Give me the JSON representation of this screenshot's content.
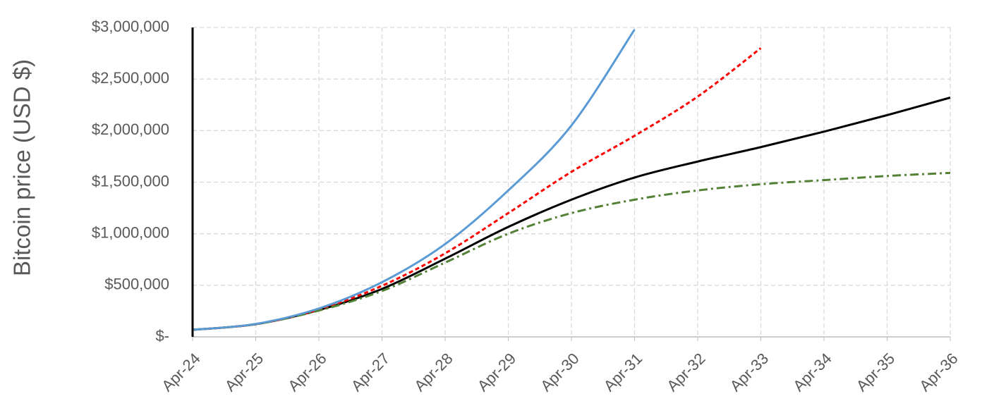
{
  "chart_data": {
    "type": "line",
    "y_label": "Bitcoin price (USD $)",
    "categories": [
      "Apr-24",
      "Apr-25",
      "Apr-26",
      "Apr-27",
      "Apr-28",
      "Apr-29",
      "Apr-30",
      "Apr-31",
      "Apr-32",
      "Apr-33",
      "Apr-34",
      "Apr-35",
      "Apr-36"
    ],
    "series": [
      {
        "color": "#000000",
        "dash": "solid",
        "values": [
          68000,
          123000,
          260000,
          465000,
          758000,
          1066000,
          1330000,
          1545000,
          1700000,
          1840000,
          1990000,
          2150000,
          2320000
        ]
      },
      {
        "color": "#ff0000",
        "dash": "dashed",
        "values": [
          68000,
          124000,
          265000,
          495000,
          810000,
          1200000,
          1600000,
          1950000,
          2330000,
          2800000,
          null,
          null,
          null
        ]
      },
      {
        "color": "#538135",
        "dash": "dashdot",
        "values": [
          68000,
          123000,
          255000,
          445000,
          720000,
          1000000,
          1200000,
          1330000,
          1420000,
          1480000,
          1520000,
          1560000,
          1590000
        ]
      },
      {
        "color": "#5b9bd5",
        "dash": "solid",
        "values": [
          68000,
          125000,
          275000,
          530000,
          900000,
          1420000,
          2050000,
          2980000,
          null,
          null,
          null,
          null,
          null
        ]
      }
    ],
    "ylim": [
      0,
      3000000
    ],
    "yticks": [
      {
        "value": 0,
        "label": "$-"
      },
      {
        "value": 500000,
        "label": "$500,000"
      },
      {
        "value": 1000000,
        "label": "$1,000,000"
      },
      {
        "value": 1500000,
        "label": "$1,500,000"
      },
      {
        "value": 2000000,
        "label": "$2,000,000"
      },
      {
        "value": 2500000,
        "label": "$2,500,000"
      },
      {
        "value": 3000000,
        "label": "$3,000,000"
      }
    ],
    "grid": true
  }
}
